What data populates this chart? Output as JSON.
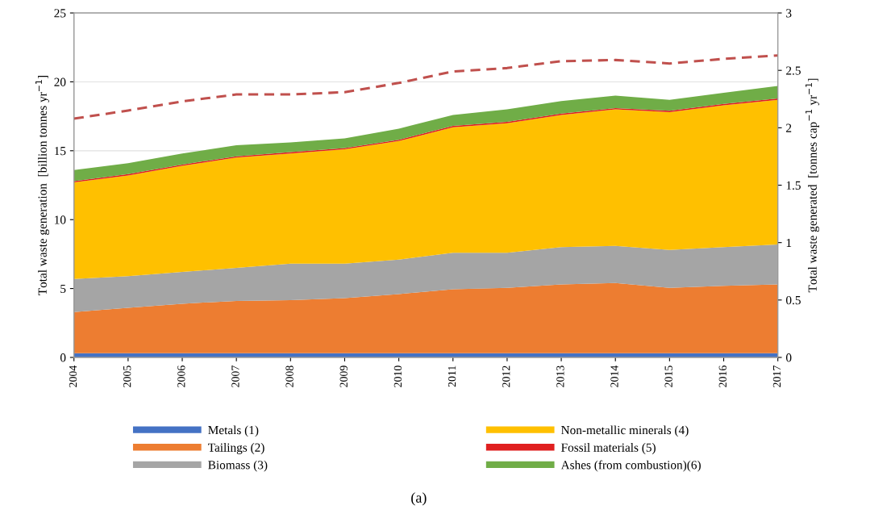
{
  "chart_data": {
    "type": "area",
    "stacked": true,
    "categories": [
      "2004",
      "2005",
      "2006",
      "2007",
      "2008",
      "2009",
      "2010",
      "2011",
      "2012",
      "2013",
      "2014",
      "2015",
      "2016",
      "2017"
    ],
    "series": [
      {
        "name": "Metals (1)",
        "color": "#4472c4",
        "values": [
          0.3,
          0.3,
          0.3,
          0.3,
          0.3,
          0.3,
          0.3,
          0.3,
          0.3,
          0.3,
          0.3,
          0.3,
          0.3,
          0.3
        ]
      },
      {
        "name": "Tailings (2)",
        "color": "#ed7d31",
        "values": [
          3.0,
          3.3,
          3.6,
          3.8,
          3.85,
          4.0,
          4.3,
          4.65,
          4.75,
          5.0,
          5.1,
          4.75,
          4.9,
          5.0
        ]
      },
      {
        "name": "Biomass (3)",
        "color": "#a5a5a5",
        "values": [
          2.4,
          2.3,
          2.3,
          2.4,
          2.65,
          2.5,
          2.5,
          2.65,
          2.55,
          2.7,
          2.7,
          2.75,
          2.8,
          2.9
        ]
      },
      {
        "name": "Non-metallic minerals (4)",
        "color": "#ffc000",
        "values": [
          7.0,
          7.3,
          7.7,
          8.0,
          8.0,
          8.3,
          8.6,
          9.1,
          9.4,
          9.6,
          9.9,
          10.0,
          10.3,
          10.5
        ]
      },
      {
        "name": "Fossil materials (5)",
        "color": "#e02020",
        "values": [
          0.1,
          0.1,
          0.1,
          0.1,
          0.1,
          0.1,
          0.1,
          0.1,
          0.1,
          0.1,
          0.1,
          0.1,
          0.1,
          0.1
        ]
      },
      {
        "name": "Ashes (from combustion)(6)",
        "color": "#70ad47",
        "values": [
          0.8,
          0.8,
          0.8,
          0.8,
          0.7,
          0.7,
          0.8,
          0.8,
          0.9,
          0.9,
          0.9,
          0.8,
          0.8,
          0.9
        ]
      },
      {
        "type": "line",
        "axis": "y2",
        "line_style": "dashed",
        "color": "#c0504d",
        "values": [
          2.08,
          2.15,
          2.23,
          2.29,
          2.29,
          2.31,
          2.39,
          2.49,
          2.52,
          2.58,
          2.59,
          2.56,
          2.6,
          2.63
        ]
      }
    ],
    "ylabel": "Total waste generation  [billion tonnes yr$^{−1}$]",
    "y2label": "Total waste generated  [tonnes cap$^{−1}$ yr$^{−1}$]",
    "ylim": [
      0,
      25
    ],
    "yticks": [
      0,
      5,
      10,
      15,
      20,
      25
    ],
    "y2lim": [
      0,
      3
    ],
    "y2ticks": [
      0,
      0.5,
      1,
      1.5,
      2,
      2.5,
      3
    ],
    "grid": "y",
    "legend": "bottom",
    "annotations": [
      "(a)"
    ]
  }
}
